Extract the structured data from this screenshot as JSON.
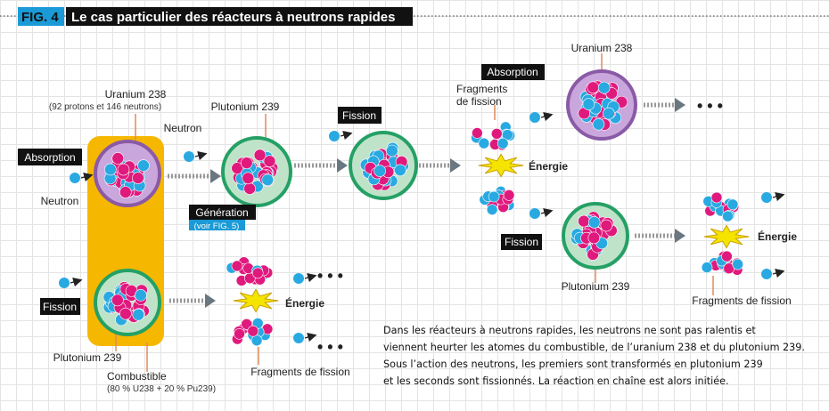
{
  "header": {
    "fig_label": "FIG. 4",
    "title": "Le cas particulier des réacteurs à neutrons rapides"
  },
  "colors": {
    "fig_blue": "#1a9ad6",
    "fuel_yellow": "#f6b700",
    "proton": "#e0197d",
    "neutron": "#29a9e1",
    "u238_ring": "#8a5aa6",
    "pu239_ring": "#25a065",
    "energy": "#f5e400"
  },
  "labels": {
    "uranium238": "Uranium 238",
    "uranium238_detail": "(92 protons et 146 neutrons)",
    "plutonium239": "Plutonium 239",
    "neutron": "Neutron",
    "absorption": "Absorption",
    "fission": "Fission",
    "generation": "Génération",
    "generation_ref": "(voir FIG. 5)",
    "fragments_line1": "Fragments",
    "fragments_line2": "de fission",
    "fragments": "Fragments de fission",
    "energy": "Énergie",
    "ellipsis": "• • •",
    "combustible": "Combustible",
    "combustible_detail": "(80 % U238 + 20 % Pu239)"
  },
  "paragraph": [
    "Dans les réacteurs à neutrons rapides, les neutrons ne sont pas ralentis et",
    "viennent heurter les atomes du combustible, de l’uranium 238 et du plutonium 239.",
    "Sous l’action des neutrons, les premiers sont transformés en plutonium 239",
    "et les seconds sont fissionnés. La réaction en chaîne est alors initiée."
  ]
}
